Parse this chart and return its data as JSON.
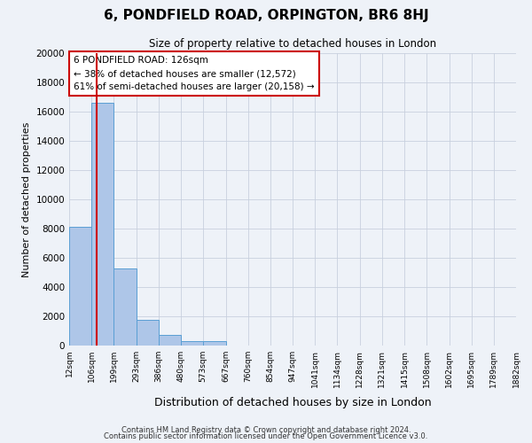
{
  "title": "6, PONDFIELD ROAD, ORPINGTON, BR6 8HJ",
  "subtitle": "Size of property relative to detached houses in London",
  "xlabel": "Distribution of detached houses by size in London",
  "ylabel": "Number of detached properties",
  "bar_heights": [
    8100,
    16600,
    5300,
    1750,
    750,
    300,
    300,
    0,
    0,
    0,
    0,
    0,
    0,
    0,
    0,
    0,
    0,
    0,
    0,
    0
  ],
  "bin_labels": [
    "12sqm",
    "106sqm",
    "199sqm",
    "293sqm",
    "386sqm",
    "480sqm",
    "573sqm",
    "667sqm",
    "760sqm",
    "854sqm",
    "947sqm",
    "1041sqm",
    "1134sqm",
    "1228sqm",
    "1321sqm",
    "1415sqm",
    "1508sqm",
    "1602sqm",
    "1695sqm",
    "1789sqm",
    "1882sqm"
  ],
  "bin_edges": [
    12,
    106,
    199,
    293,
    386,
    480,
    573,
    667,
    760,
    854,
    947,
    1041,
    1134,
    1228,
    1321,
    1415,
    1508,
    1602,
    1695,
    1789,
    1882
  ],
  "bar_color": "#aec6e8",
  "bar_edge_color": "#5a9fd4",
  "red_line_x": 126,
  "vline_color": "#cc0000",
  "annotation_title": "6 PONDFIELD ROAD: 126sqm",
  "annotation_line1": "← 38% of detached houses are smaller (12,572)",
  "annotation_line2": "61% of semi-detached houses are larger (20,158) →",
  "annotation_box_color": "#ffffff",
  "annotation_box_edge": "#cc0000",
  "ylim": [
    0,
    20000
  ],
  "yticks": [
    0,
    2000,
    4000,
    6000,
    8000,
    10000,
    12000,
    14000,
    16000,
    18000,
    20000
  ],
  "bg_color": "#eef2f8",
  "grid_color": "#c8d0de",
  "footer1": "Contains HM Land Registry data © Crown copyright and database right 2024.",
  "footer2": "Contains public sector information licensed under the Open Government Licence v3.0."
}
